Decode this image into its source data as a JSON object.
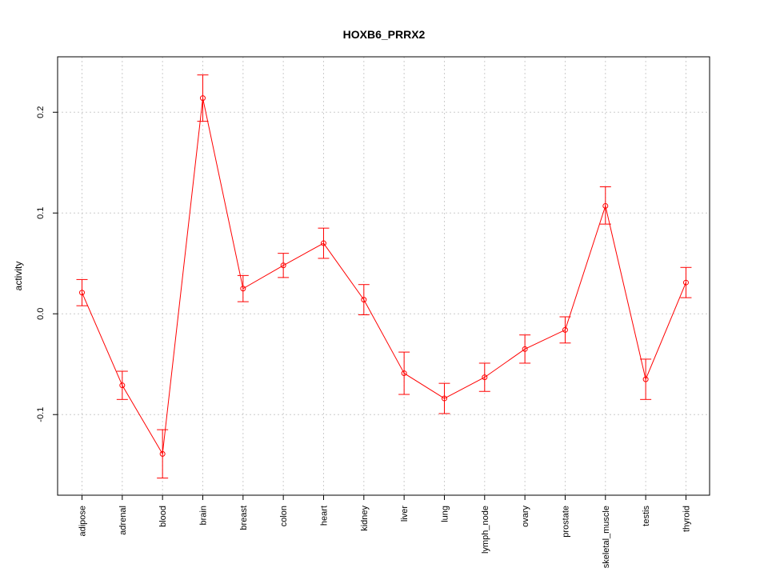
{
  "chart_data": {
    "type": "line",
    "title": "HOXB6_PRRX2",
    "xlabel": "",
    "ylabel": "activity",
    "categories": [
      "adipose",
      "adrenal",
      "blood",
      "brain",
      "breast",
      "colon",
      "heart",
      "kidney",
      "liver",
      "lung",
      "lymph_node",
      "ovary",
      "prostate",
      "skeletal_muscle",
      "testis",
      "thyroid"
    ],
    "series": [
      {
        "values": [
          0.021,
          -0.071,
          -0.139,
          0.214,
          0.025,
          0.048,
          0.07,
          0.014,
          -0.059,
          -0.084,
          -0.063,
          -0.035,
          -0.016,
          0.107,
          -0.065,
          0.031
        ],
        "err_low": [
          0.008,
          -0.085,
          -0.163,
          0.191,
          0.012,
          0.036,
          0.055,
          -0.001,
          -0.08,
          -0.099,
          -0.077,
          -0.049,
          -0.029,
          0.089,
          -0.085,
          0.016
        ],
        "err_high": [
          0.034,
          -0.057,
          -0.115,
          0.237,
          0.038,
          0.06,
          0.085,
          0.029,
          -0.038,
          -0.069,
          -0.049,
          -0.021,
          -0.003,
          0.126,
          -0.045,
          0.046
        ]
      }
    ],
    "ylim": [
      -0.18,
      0.255
    ],
    "yticks": [
      -0.1,
      0.0,
      0.1,
      0.2
    ],
    "ytick_labels": [
      "-0.1",
      "0.0",
      "0.1",
      "0.2"
    ],
    "grid": true,
    "color": "#ff0000",
    "grid_color": "#cccccc"
  }
}
